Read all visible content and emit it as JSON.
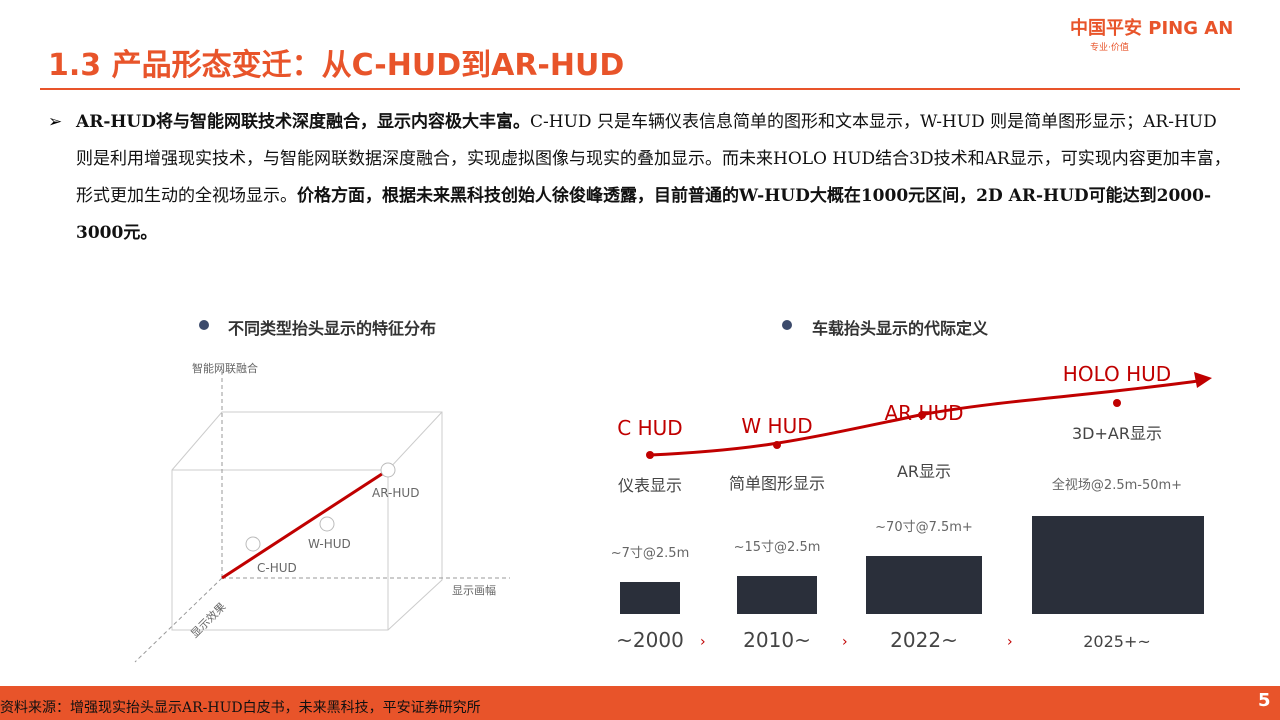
{
  "header": {
    "title": "1.3 产品形态变迁：从C-HUD到AR-HUD",
    "logo": "中国平安 PING AN",
    "slogan": "专业·价值"
  },
  "body": {
    "bold1": "AR-HUD将与智能网联技术深度融合，显示内容极大丰富。",
    "text": "C-HUD 只是车辆仪表信息简单的图形和文本显示，W-HUD 则是简单图形显示；AR-HUD 则是利用增强现实技术，与智能网联数据深度融合，实现虚拟图像与现实的叠加显示。而未来HOLO HUD结合3D技术和AR显示，可实现内容更加丰富，形式更加生动的全视场显示。",
    "bold2": "价格方面，根据未来黑科技创始人徐俊峰透露，目前普通的W-HUD大概在1000元区间，2D AR-HUD可能达到2000-3000元。"
  },
  "left_figure": {
    "title": "不同类型抬头显示的特征分布",
    "axis_up": "智能网联融合",
    "axis_right": "显示画幅",
    "axis_diag": "显示效果",
    "points": [
      "C-HUD",
      "W-HUD",
      "AR-HUD"
    ]
  },
  "right_figure": {
    "title": "车载抬头显示的代际定义",
    "generations": [
      {
        "name": "C HUD",
        "desc": "仪表显示",
        "spec": "~7寸@2.5m",
        "year": "~2000"
      },
      {
        "name": "W HUD",
        "desc": "简单图形显示",
        "spec": "~15寸@2.5m",
        "year": "2010~"
      },
      {
        "name": "AR HUD",
        "desc": "AR显示",
        "spec": "~70寸@7.5m+",
        "year": "2022~"
      },
      {
        "name": "HOLO HUD",
        "desc": "3D+AR显示",
        "spec": "全视场@2.5m-50m+",
        "year": "2025+~"
      }
    ]
  },
  "footer": {
    "source": "资料来源：增强现实抬头显示AR-HUD白皮书，未来黑科技，平安证券研究所",
    "page": "5"
  }
}
